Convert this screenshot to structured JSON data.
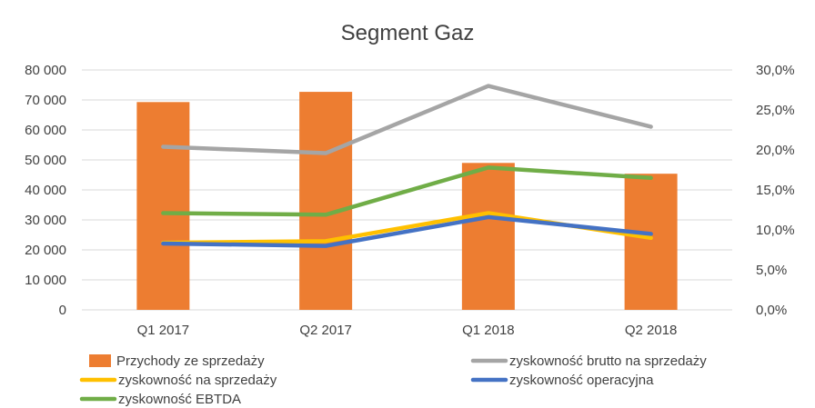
{
  "chart_data": {
    "type": "bar",
    "title": "Segment Gaz",
    "categories": [
      "Q1 2017",
      "Q2 2017",
      "Q1 2018",
      "Q2 2018"
    ],
    "y_left": {
      "ylim": [
        0,
        80000
      ],
      "ticks": [
        0,
        10000,
        20000,
        30000,
        40000,
        50000,
        60000,
        70000,
        80000
      ],
      "tick_labels": [
        "0",
        "10 000",
        "20 000",
        "30 000",
        "40 000",
        "50 000",
        "60 000",
        "70 000",
        "80 000"
      ]
    },
    "y_right": {
      "ylim": [
        0,
        30
      ],
      "ticks": [
        0,
        5,
        10,
        15,
        20,
        25,
        30
      ],
      "tick_labels": [
        "0,0%",
        "5,0%",
        "10,0%",
        "15,0%",
        "20,0%",
        "25,0%",
        "30,0%"
      ]
    },
    "grid": true,
    "legend_position": "bottom",
    "series": [
      {
        "name": "Przychody ze sprzedaży",
        "type": "bar",
        "axis": "left",
        "color": "#ed7d31",
        "values": [
          69300,
          72700,
          49000,
          45400
        ]
      },
      {
        "name": "zyskowność brutto na sprzedaży",
        "type": "line",
        "axis": "right",
        "color": "#a5a5a5",
        "values": [
          20.4,
          19.6,
          28.0,
          22.9
        ]
      },
      {
        "name": "zyskowność na sprzedaży",
        "type": "line",
        "axis": "right",
        "color": "#ffc000",
        "values": [
          8.4,
          8.6,
          12.1,
          9.0
        ]
      },
      {
        "name": "zyskowność operacyjna",
        "type": "line",
        "axis": "right",
        "color": "#4472c4",
        "values": [
          8.3,
          8.0,
          11.6,
          9.5
        ]
      },
      {
        "name": "zyskowność EBTDA",
        "type": "line",
        "axis": "right",
        "color": "#70ad47",
        "values": [
          12.1,
          11.9,
          17.8,
          16.5
        ]
      }
    ]
  }
}
